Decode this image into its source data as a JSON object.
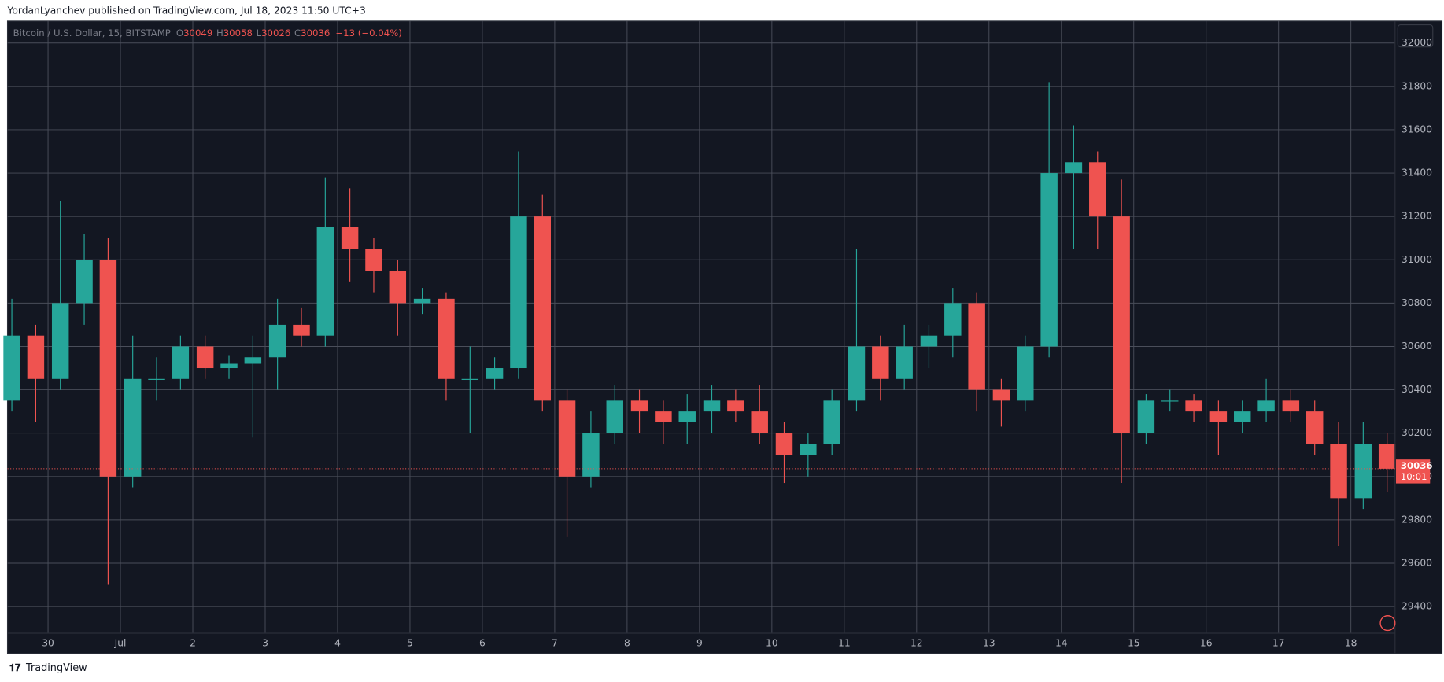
{
  "chart_data": {
    "type": "candlestick",
    "header": "YordanLyanchev published on TradingView.com, Jul 18, 2023 11:50 UTC+3",
    "symbol": "Bitcoin / U.S. Dollar, 15, BITSTAMP",
    "legend": {
      "o_label": "O",
      "open": 30049,
      "h_label": "H",
      "high": 30058,
      "l_label": "L",
      "low": 30026,
      "c_label": "C",
      "close": 30036,
      "change": "−13 (−0.04%)"
    },
    "last_price": {
      "value": 30036,
      "countdown": "10:01"
    },
    "footer": "TradingView",
    "up_color": "#26a69a",
    "down_color": "#ef5350",
    "x": [
      -0.5,
      -0.17,
      0.17,
      0.5,
      0.83,
      1.17,
      1.5,
      1.83,
      2.17,
      2.5,
      2.83,
      3.17,
      3.5,
      3.83,
      4.17,
      4.5,
      4.83,
      5.17,
      5.5,
      5.83,
      6.17,
      6.5,
      6.83,
      7.17,
      7.5,
      7.83,
      8.17,
      8.5,
      8.83,
      9.17,
      9.5,
      9.83,
      10.17,
      10.5,
      10.83,
      11.17,
      11.5,
      11.83,
      12.17,
      12.5,
      12.83,
      13.17,
      13.5,
      13.83,
      14.17,
      14.5,
      14.83,
      15.17,
      15.5,
      15.83,
      16.17,
      16.5,
      16.83,
      17.17,
      17.5,
      17.83,
      18.17,
      18.5
    ],
    "open": [
      30350,
      30650,
      30450,
      30800,
      31000,
      30000,
      30450,
      30450,
      30600,
      30500,
      30520,
      30550,
      30700,
      30650,
      31150,
      31050,
      30950,
      30800,
      30820,
      30450,
      30450,
      30500,
      31200,
      30350,
      30000,
      30200,
      30350,
      30300,
      30250,
      30300,
      30350,
      30300,
      30200,
      30100,
      30150,
      30350,
      30600,
      30450,
      30600,
      30650,
      30800,
      30400,
      30350,
      30600,
      31400,
      31450,
      31200,
      30200,
      30350,
      30350,
      30300,
      30250,
      30300,
      30350,
      30300,
      30150,
      29900,
      30150
    ],
    "high": [
      30820,
      30700,
      31270,
      31120,
      31100,
      30650,
      30550,
      30650,
      30650,
      30560,
      30650,
      30820,
      30780,
      31380,
      31330,
      31100,
      31000,
      30870,
      30850,
      30600,
      30550,
      31500,
      31300,
      30400,
      30300,
      30420,
      30400,
      30350,
      30380,
      30420,
      30400,
      30420,
      30250,
      30200,
      30400,
      31050,
      30650,
      30700,
      30700,
      30870,
      30850,
      30450,
      30650,
      31820,
      31620,
      31500,
      31370,
      30380,
      30400,
      30380,
      30350,
      30350,
      30450,
      30400,
      30350,
      30250,
      30250,
      30200
    ],
    "low": [
      30300,
      30250,
      30400,
      30700,
      29500,
      29950,
      30350,
      30400,
      30450,
      30450,
      30180,
      30400,
      30600,
      30600,
      30900,
      30850,
      30650,
      30750,
      30350,
      30200,
      30400,
      30450,
      30300,
      29720,
      29950,
      30150,
      30200,
      30150,
      30150,
      30200,
      30250,
      30150,
      29970,
      30000,
      30100,
      30300,
      30350,
      30400,
      30500,
      30550,
      30300,
      30230,
      30300,
      30550,
      31050,
      31050,
      29970,
      30150,
      30300,
      30250,
      30100,
      30200,
      30250,
      30250,
      30100,
      29680,
      29850,
      29930
    ],
    "close": [
      30650,
      30450,
      30800,
      31000,
      30000,
      30450,
      30450,
      30600,
      30500,
      30520,
      30550,
      30700,
      30650,
      31150,
      31050,
      30950,
      30800,
      30820,
      30450,
      30450,
      30500,
      31200,
      30350,
      30000,
      30200,
      30350,
      30300,
      30250,
      30300,
      30350,
      30300,
      30200,
      30100,
      30150,
      30350,
      30600,
      30450,
      30600,
      30650,
      30800,
      30400,
      30350,
      30600,
      31400,
      31450,
      31200,
      30200,
      30350,
      30350,
      30300,
      30250,
      30300,
      30350,
      30300,
      30150,
      29900,
      30150,
      30036
    ],
    "xlim": [
      -0.56,
      18.61
    ],
    "xticks": [
      {
        "value": 0,
        "label": "30"
      },
      {
        "value": 1,
        "label": "Jul"
      },
      2,
      3,
      4,
      5,
      6,
      7,
      8,
      9,
      10,
      11,
      12,
      13,
      14,
      15,
      16,
      17,
      18
    ],
    "ylim": [
      29277,
      32101
    ],
    "yticks": [
      29400,
      29600,
      29800,
      30000,
      30200,
      30400,
      30600,
      30800,
      31000,
      31200,
      31400,
      31600,
      31800,
      32000
    ],
    "grid": true
  }
}
